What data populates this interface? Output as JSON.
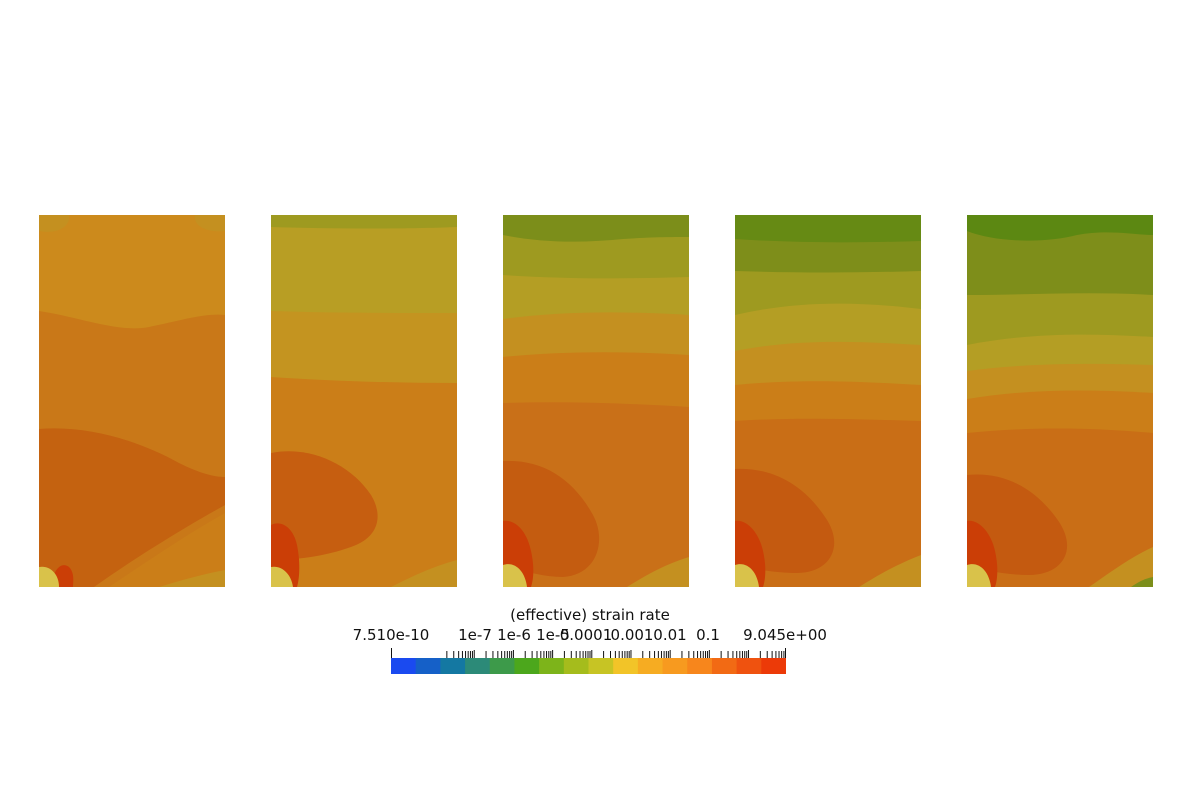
{
  "chart_data": {
    "type": "heatmap",
    "panel_count": 5,
    "colorbar": {
      "title": "(effective) strain rate",
      "scale": "log",
      "min_label": "7.510e-10",
      "max_label": "9.045e+00",
      "tick_labels": [
        "1e-7",
        "1e-6",
        "1e-5",
        "0.0001",
        "0.001",
        "0.01",
        "0.1"
      ],
      "colors": [
        "#1a4af0",
        "#1560c8",
        "#1478a2",
        "#2c8a78",
        "#3d9a4a",
        "#4ca71c",
        "#7db41a",
        "#a5bc1c",
        "#c7c424",
        "#f2c428",
        "#f6ac22",
        "#f79a1f",
        "#f7861c",
        "#f26a14",
        "#ef520f",
        "#ec3a08"
      ]
    },
    "panels": [
      {
        "name": "panel-1",
        "bands": [
          "#cc8a1c",
          "#c97818",
          "#c46210"
        ]
      },
      {
        "name": "panel-2",
        "bands": [
          "#b89e24",
          "#c49420",
          "#cb7e18",
          "#c97318",
          "#c65e10"
        ]
      },
      {
        "name": "panel-3",
        "bands": [
          "#7c8e1a",
          "#9e9a20",
          "#b49e24",
          "#c49020",
          "#cb7e18",
          "#c97018",
          "#c45c10"
        ]
      },
      {
        "name": "panel-4",
        "bands": [
          "#668a14",
          "#7e8e1a",
          "#9e9a20",
          "#b49e24",
          "#c49020",
          "#cb7e18",
          "#c96e16",
          "#c45a10"
        ]
      },
      {
        "name": "panel-5",
        "bands": [
          "#5c8812",
          "#7e8e1a",
          "#9e9a20",
          "#b49e24",
          "#c49020",
          "#cb7e18",
          "#c96e16",
          "#c45a10"
        ]
      }
    ]
  }
}
